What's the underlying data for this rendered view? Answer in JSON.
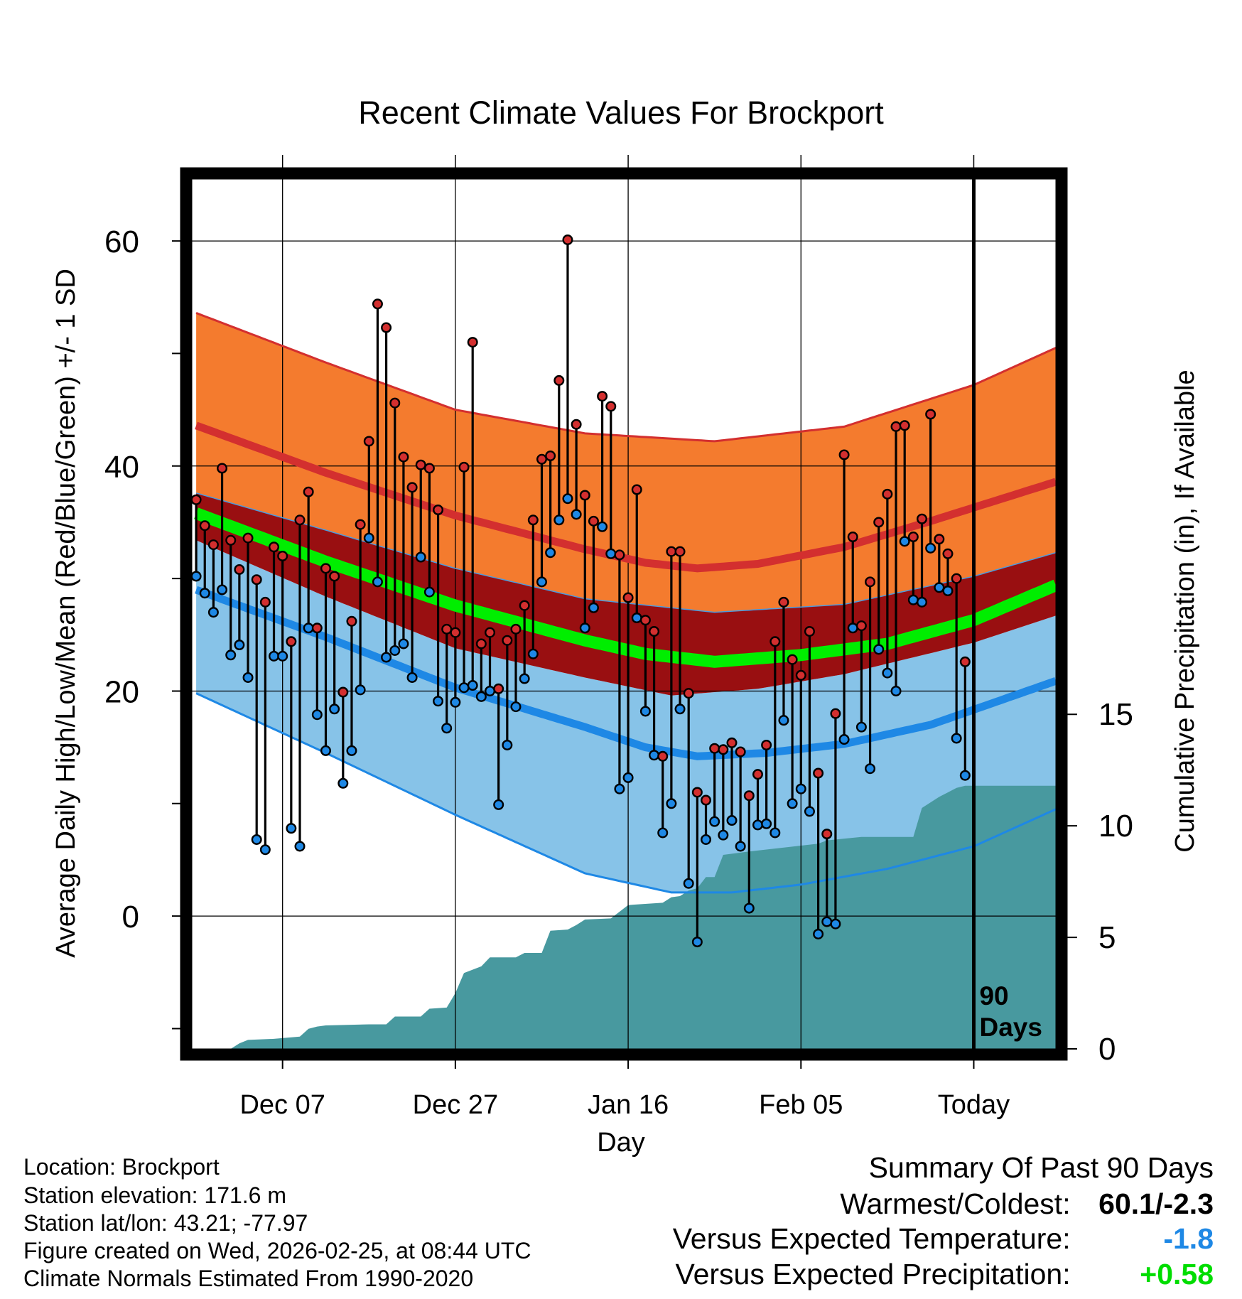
{
  "chart_data": {
    "type": "line",
    "title": "Recent Climate Values For Brockport",
    "xlabel": "Day",
    "ylabel": "Average Daily High/Low/Mean (Red/Blue/Green) +/- 1 SD",
    "y2label": "Cumulative Precipitation (in), If Available",
    "ylim": [
      -11.8,
      65.5
    ],
    "y2lim": [
      0,
      39
    ],
    "xlim": [
      -0.5,
      99.5
    ],
    "y_ticks": [
      "0",
      "20",
      "40",
      "60"
    ],
    "y2_ticks": [
      "0",
      "5",
      "10",
      "15"
    ],
    "x_ticks": [
      {
        "day": 10,
        "label": "Dec 07"
      },
      {
        "day": 30,
        "label": "Dec 27"
      },
      {
        "day": 50,
        "label": "Jan 16"
      },
      {
        "day": 70,
        "label": "Feb 05"
      },
      {
        "day": 90,
        "label": "Today"
      }
    ],
    "today_day": 90,
    "window_label": [
      "90",
      "Days"
    ],
    "colors": {
      "high": "#d32f2f",
      "high_band": "#f47b2e",
      "low": "#1e88e5",
      "low_band": "#87c3e8",
      "mean": "#00ee00",
      "mean_band": "#990f11",
      "precip": "#48999f",
      "frame": "#000000"
    },
    "normals": {
      "high_mean": [
        [
          0,
          43.6
        ],
        [
          15,
          39.4
        ],
        [
          30,
          35.6
        ],
        [
          45,
          32.6
        ],
        [
          52,
          31.4
        ],
        [
          58,
          30.9
        ],
        [
          65,
          31.3
        ],
        [
          75,
          32.8
        ],
        [
          85,
          35.1
        ],
        [
          99.5,
          38.6
        ]
      ],
      "high_sd_upper": [
        [
          0,
          53.6
        ],
        [
          15,
          49.2
        ],
        [
          30,
          45.0
        ],
        [
          45,
          42.9
        ],
        [
          60,
          42.2
        ],
        [
          75,
          43.5
        ],
        [
          90,
          47.2
        ],
        [
          99.5,
          50.5
        ]
      ],
      "high_sd_lower": [
        [
          0,
          37.6
        ],
        [
          15,
          34.3
        ],
        [
          30,
          30.9
        ],
        [
          45,
          28.2
        ],
        [
          60,
          27.0
        ],
        [
          75,
          27.7
        ],
        [
          90,
          30.2
        ],
        [
          99.5,
          32.3
        ]
      ],
      "mean_mean": [
        [
          0,
          35.8
        ],
        [
          15,
          31.5
        ],
        [
          30,
          27.6
        ],
        [
          45,
          24.5
        ],
        [
          52,
          23.3
        ],
        [
          60,
          22.6
        ],
        [
          70,
          23.2
        ],
        [
          80,
          24.2
        ],
        [
          90,
          26.3
        ],
        [
          99.5,
          29.4
        ]
      ],
      "mean_sd_upper": [
        [
          0,
          37.6
        ],
        [
          15,
          34.3
        ],
        [
          30,
          30.9
        ],
        [
          45,
          28.2
        ],
        [
          60,
          27.0
        ],
        [
          75,
          27.7
        ],
        [
          90,
          30.2
        ],
        [
          99.5,
          32.3
        ]
      ],
      "mean_sd_lower": [
        [
          0,
          33.4
        ],
        [
          15,
          28.4
        ],
        [
          30,
          23.8
        ],
        [
          45,
          21.2
        ],
        [
          55,
          19.6
        ],
        [
          65,
          20.2
        ],
        [
          75,
          21.5
        ],
        [
          90,
          24.3
        ],
        [
          99.5,
          26.7
        ]
      ],
      "low_mean": [
        [
          0,
          29.0
        ],
        [
          15,
          24.8
        ],
        [
          30,
          20.3
        ],
        [
          45,
          16.8
        ],
        [
          52,
          15.0
        ],
        [
          58,
          14.2
        ],
        [
          66,
          14.5
        ],
        [
          75,
          15.3
        ],
        [
          85,
          17.0
        ],
        [
          99.5,
          20.9
        ]
      ],
      "low_sd_upper": [
        [
          0,
          33.4
        ],
        [
          15,
          28.4
        ],
        [
          30,
          23.8
        ],
        [
          45,
          21.2
        ],
        [
          55,
          19.6
        ],
        [
          65,
          20.2
        ],
        [
          75,
          21.5
        ],
        [
          90,
          24.3
        ],
        [
          99.5,
          26.7
        ]
      ],
      "low_sd_lower": [
        [
          0,
          19.8
        ],
        [
          15,
          14.5
        ],
        [
          30,
          9.0
        ],
        [
          45,
          3.8
        ],
        [
          55,
          2.1
        ],
        [
          62,
          2.1
        ],
        [
          70,
          2.8
        ],
        [
          80,
          4.2
        ],
        [
          90,
          6.2
        ],
        [
          99.5,
          9.5
        ]
      ]
    },
    "series": [
      {
        "name": "Daily High",
        "values": [
          37.0,
          34.7,
          33.0,
          39.8,
          33.4,
          30.8,
          33.6,
          29.9,
          27.9,
          32.8,
          32.0,
          24.4,
          35.2,
          37.7,
          25.6,
          30.9,
          30.2,
          19.9,
          26.2,
          34.8,
          42.2,
          54.4,
          52.3,
          45.6,
          40.8,
          38.1,
          40.1,
          39.8,
          36.1,
          25.5,
          25.2,
          39.9,
          51.0,
          24.2,
          25.2,
          20.2,
          24.5,
          25.5,
          27.6,
          35.2,
          40.6,
          40.9,
          47.6,
          60.1,
          43.7,
          37.4,
          35.1,
          46.2,
          45.3,
          32.1,
          28.3,
          37.9,
          26.3,
          25.3,
          14.2,
          32.4,
          32.4,
          19.8,
          11.0,
          10.3,
          14.9,
          14.8,
          15.4,
          14.6,
          10.7,
          12.6,
          15.2,
          24.4,
          27.9,
          22.8,
          21.4,
          25.3,
          12.7,
          7.3,
          18.0,
          41.0,
          33.7,
          25.8,
          29.7,
          35.0,
          37.5,
          43.5,
          43.6,
          33.7,
          35.3,
          44.6,
          33.5,
          32.2,
          30.0,
          22.6
        ]
      },
      {
        "name": "Daily Low",
        "values": [
          30.2,
          28.7,
          27.0,
          29.0,
          23.2,
          24.1,
          21.2,
          6.8,
          5.9,
          23.1,
          23.1,
          7.8,
          6.2,
          25.6,
          17.9,
          14.7,
          18.4,
          11.8,
          14.7,
          20.1,
          33.6,
          29.7,
          23.0,
          23.6,
          24.2,
          21.2,
          31.9,
          28.8,
          19.1,
          16.7,
          19.0,
          20.3,
          20.5,
          19.5,
          20.0,
          9.9,
          15.2,
          18.6,
          21.1,
          23.3,
          29.7,
          32.3,
          35.2,
          37.1,
          35.7,
          25.6,
          27.4,
          34.6,
          32.2,
          11.3,
          12.3,
          26.5,
          18.2,
          14.3,
          7.4,
          10.0,
          18.4,
          2.9,
          -2.3,
          6.8,
          8.4,
          7.2,
          8.5,
          6.2,
          0.7,
          8.1,
          8.2,
          7.4,
          17.4,
          10.0,
          11.3,
          9.3,
          -1.6,
          -0.5,
          -0.7,
          15.7,
          25.6,
          16.8,
          13.1,
          23.7,
          21.6,
          20.0,
          33.3,
          28.1,
          27.9,
          32.7,
          29.2,
          28.9,
          15.8,
          12.5
        ]
      }
    ],
    "precip_cumulative": [
      [
        0,
        0
      ],
      [
        4,
        0
      ],
      [
        5,
        0.25
      ],
      [
        6,
        0.4
      ],
      [
        9,
        0.45
      ],
      [
        12,
        0.55
      ],
      [
        13,
        0.9
      ],
      [
        14,
        1.0
      ],
      [
        15,
        1.05
      ],
      [
        20,
        1.1
      ],
      [
        22,
        1.1
      ],
      [
        23,
        1.45
      ],
      [
        26,
        1.45
      ],
      [
        27,
        1.8
      ],
      [
        29,
        1.85
      ],
      [
        30,
        2.5
      ],
      [
        31,
        3.4
      ],
      [
        33,
        3.7
      ],
      [
        34,
        4.1
      ],
      [
        37,
        4.1
      ],
      [
        38,
        4.3
      ],
      [
        40,
        4.3
      ],
      [
        41,
        5.3
      ],
      [
        43,
        5.35
      ],
      [
        44,
        5.55
      ],
      [
        45,
        5.8
      ],
      [
        48,
        5.85
      ],
      [
        50,
        6.45
      ],
      [
        54,
        6.55
      ],
      [
        55,
        6.8
      ],
      [
        56,
        6.85
      ],
      [
        57,
        7.1
      ],
      [
        58,
        7.2
      ],
      [
        59,
        7.7
      ],
      [
        60,
        7.7
      ],
      [
        61,
        8.7
      ],
      [
        64,
        8.85
      ],
      [
        72,
        9.2
      ],
      [
        73,
        9.35
      ],
      [
        77,
        9.5
      ],
      [
        83,
        9.5
      ],
      [
        84,
        10.8
      ],
      [
        86,
        11.3
      ],
      [
        87,
        11.5
      ],
      [
        88,
        11.7
      ],
      [
        89,
        11.8
      ],
      [
        99.5,
        11.8
      ]
    ]
  },
  "footer": {
    "location": "Location: Brockport",
    "elevation": "Station elevation: 171.6 m",
    "latlon": "Station lat/lon: 43.21; -77.97",
    "created": "Figure created on Wed, 2026-02-25, at 08:44 UTC",
    "normals_note": "Climate Normals Estimated From 1990-2020"
  },
  "summary": {
    "heading": "Summary Of Past 90 Days",
    "warmest_label": "Warmest/Coldest:",
    "warmest_value": "60.1/-2.3",
    "temp_label": "Versus Expected Temperature:",
    "temp_value": "-1.8",
    "temp_color": "#1e88e5",
    "precip_label": "Versus Expected Precipitation:",
    "precip_value": "+0.58",
    "precip_color": "#00dd00"
  }
}
